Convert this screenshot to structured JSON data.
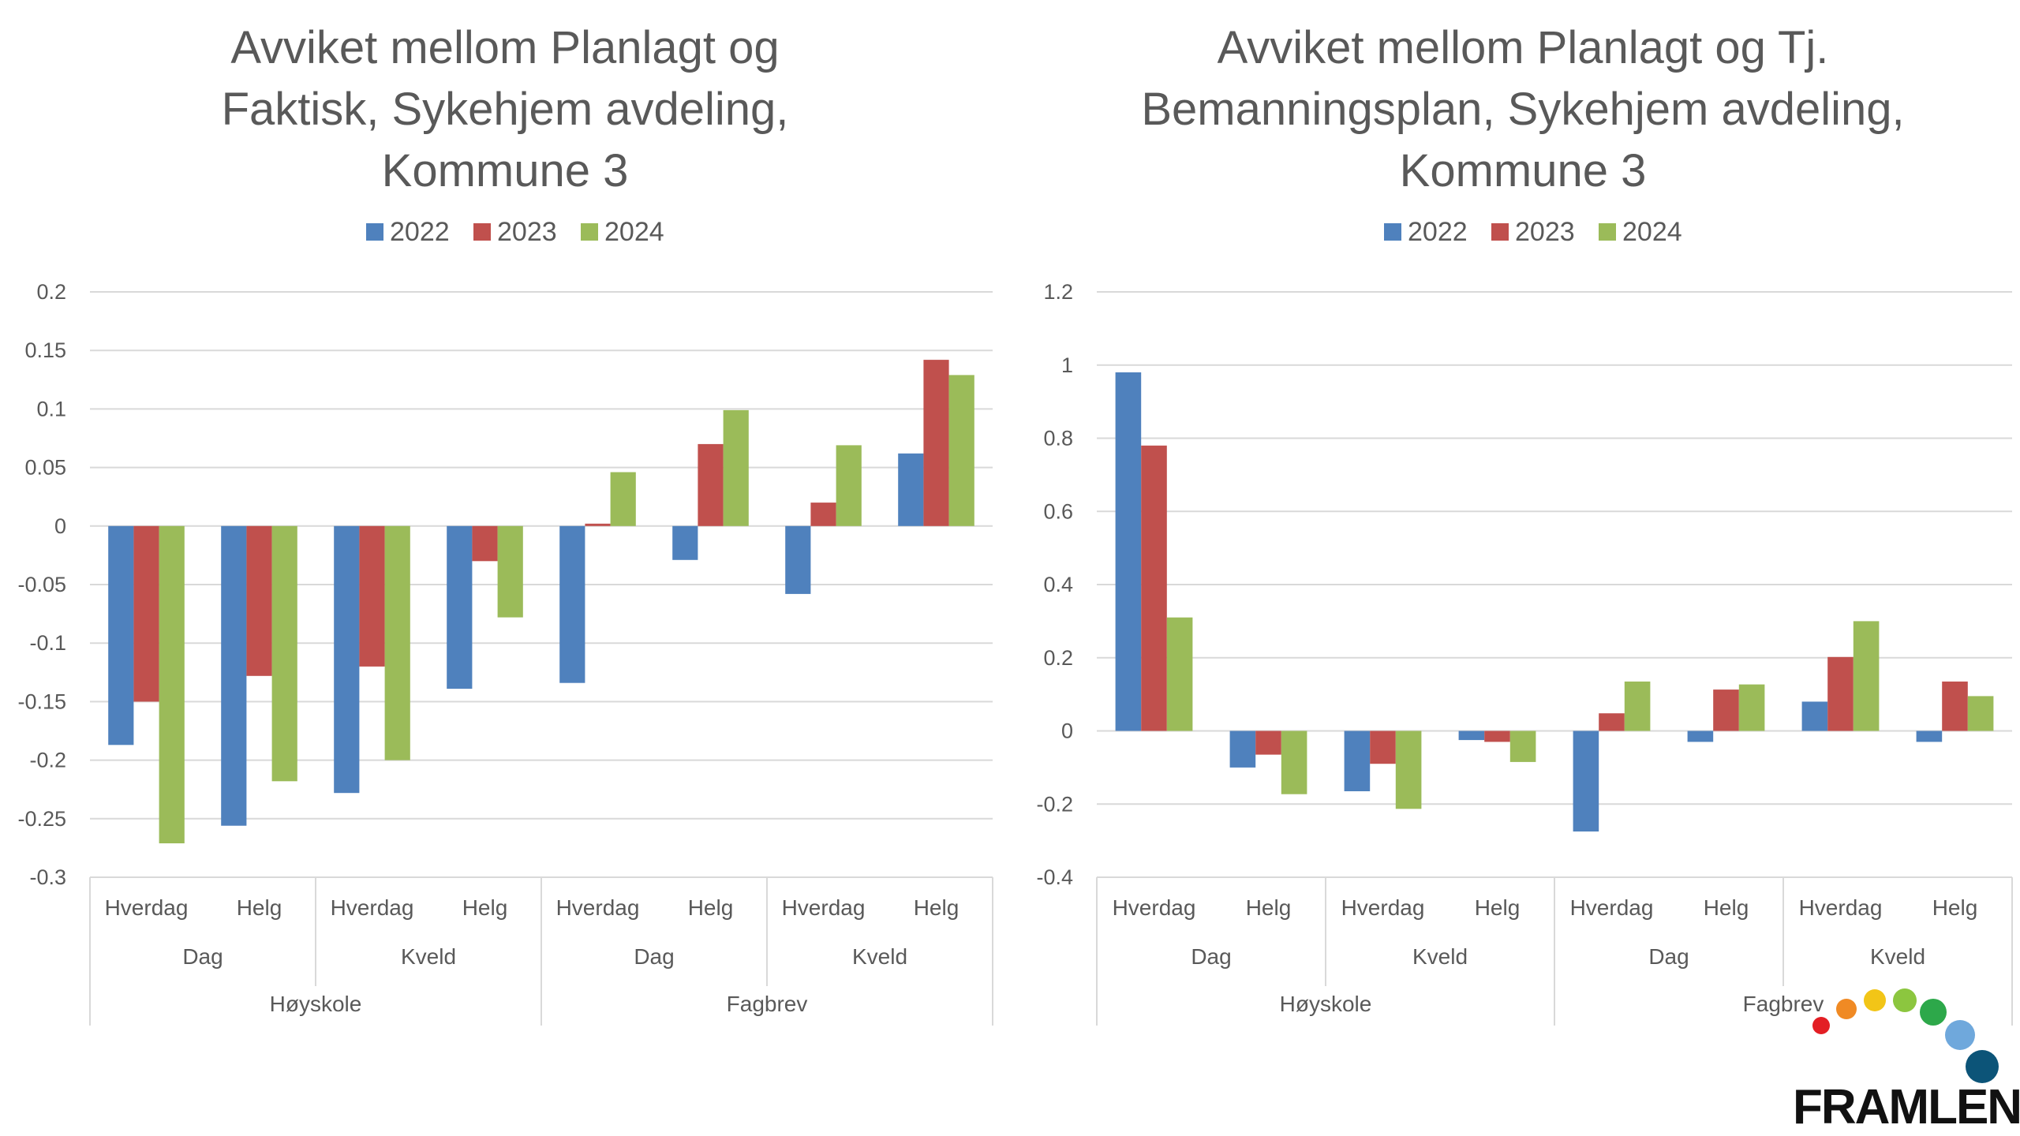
{
  "chart_data": [
    {
      "type": "bar",
      "title_lines": [
        "Avviket mellom Planlagt og",
        "Faktisk, Sykehjem avdeling,",
        "Kommune 3"
      ],
      "ylim": [
        -0.3,
        0.2
      ],
      "y_ticks": [
        "0.2",
        "0.15",
        "0.1",
        "0.05",
        "0",
        "-0.05",
        "-0.1",
        "-0.15",
        "-0.2",
        "-0.25",
        "-0.3"
      ],
      "grid": true,
      "legend_position": "top",
      "categories": [
        "Hverdag",
        "Helg",
        "Hverdag",
        "Helg",
        "Hverdag",
        "Helg",
        "Hverdag",
        "Helg"
      ],
      "group_level2": [
        "Dag",
        "Kveld",
        "Dag",
        "Kveld"
      ],
      "group_level3": [
        "Høyskole",
        "Fagbrev"
      ],
      "series": [
        {
          "name": "2022",
          "color": "#4F81BD",
          "values": [
            -0.187,
            -0.256,
            -0.228,
            -0.139,
            -0.134,
            -0.029,
            -0.058,
            0.062
          ]
        },
        {
          "name": "2023",
          "color": "#C0504D",
          "values": [
            -0.15,
            -0.128,
            -0.12,
            -0.03,
            0.002,
            0.07,
            0.02,
            0.142
          ]
        },
        {
          "name": "2024",
          "color": "#9BBB59",
          "values": [
            -0.271,
            -0.218,
            -0.2,
            -0.078,
            0.046,
            0.099,
            0.069,
            0.129
          ]
        }
      ]
    },
    {
      "type": "bar",
      "title_lines": [
        "Avviket mellom Planlagt og Tj.",
        "Bemanningsplan, Sykehjem avdeling,",
        "Kommune 3"
      ],
      "ylim": [
        -0.4,
        1.2
      ],
      "y_ticks": [
        "1.2",
        "1",
        "0.8",
        "0.6",
        "0.4",
        "0.2",
        "0",
        "-0.2",
        "-0.4"
      ],
      "grid": true,
      "legend_position": "top",
      "categories": [
        "Hverdag",
        "Helg",
        "Hverdag",
        "Helg",
        "Hverdag",
        "Helg",
        "Hverdag",
        "Helg"
      ],
      "group_level2": [
        "Dag",
        "Kveld",
        "Dag",
        "Kveld"
      ],
      "group_level3": [
        "Høyskole",
        "Fagbrev"
      ],
      "series": [
        {
          "name": "2022",
          "color": "#4F81BD",
          "values": [
            0.98,
            -0.1,
            -0.165,
            -0.025,
            -0.275,
            -0.03,
            0.08,
            -0.03
          ]
        },
        {
          "name": "2023",
          "color": "#C0504D",
          "values": [
            0.78,
            -0.065,
            -0.09,
            -0.03,
            0.048,
            0.113,
            0.202,
            0.135
          ]
        },
        {
          "name": "2024",
          "color": "#9BBB59",
          "values": [
            0.31,
            -0.173,
            -0.213,
            -0.085,
            0.135,
            0.127,
            0.3,
            0.095
          ]
        }
      ]
    }
  ],
  "logo": {
    "text": "FRAMLENT",
    "dot_colors": [
      "#E31E24",
      "#F08A24",
      "#F2C517",
      "#8CC63F",
      "#2DA84A",
      "#6FA8DC",
      "#0C5478"
    ]
  }
}
